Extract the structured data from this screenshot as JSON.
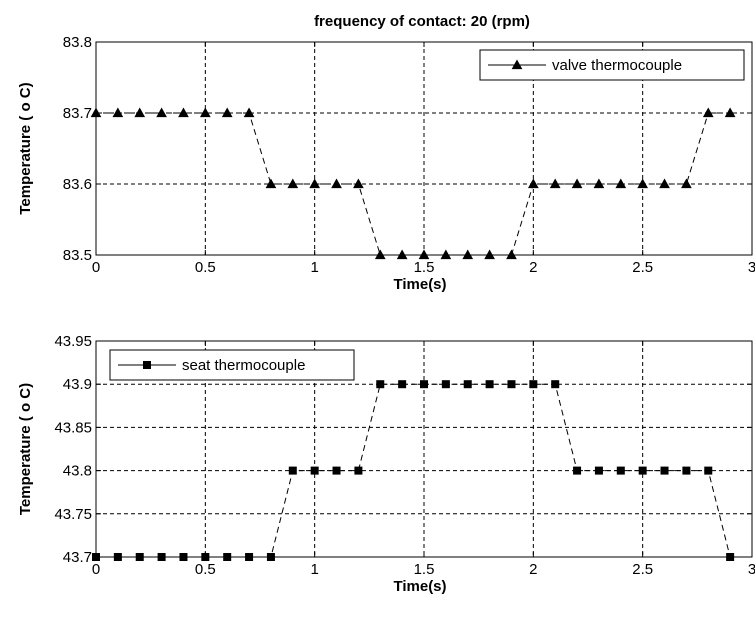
{
  "chart_data": [
    {
      "type": "line",
      "title": "frequency of contact: 20 (rpm)",
      "xlabel": "Time(s)",
      "ylabel": "Temperature (  o C)",
      "xlim": [
        0,
        3
      ],
      "ylim": [
        83.5,
        83.8
      ],
      "xticks": [
        0,
        0.5,
        1,
        1.5,
        2,
        2.5,
        3
      ],
      "xtick_labels": [
        "0",
        "0.5",
        "1",
        "1.5",
        "2",
        "2.5",
        "3"
      ],
      "yticks": [
        83.5,
        83.6,
        83.7,
        83.8
      ],
      "ytick_labels": [
        "83.5",
        "83.6",
        "83.7",
        "83.8"
      ],
      "grid": true,
      "legend_position": "top-right",
      "series": [
        {
          "name": "valve thermocouple",
          "marker": "triangle",
          "line_style": "dashed",
          "color": "#000000",
          "x": [
            0,
            0.1,
            0.2,
            0.3,
            0.4,
            0.5,
            0.6,
            0.7,
            0.8,
            0.9,
            1.0,
            1.1,
            1.2,
            1.3,
            1.4,
            1.5,
            1.6,
            1.7,
            1.8,
            1.9,
            2.0,
            2.1,
            2.2,
            2.3,
            2.4,
            2.5,
            2.6,
            2.7,
            2.8,
            2.9
          ],
          "y": [
            83.7,
            83.7,
            83.7,
            83.7,
            83.7,
            83.7,
            83.7,
            83.7,
            83.6,
            83.6,
            83.6,
            83.6,
            83.6,
            83.5,
            83.5,
            83.5,
            83.5,
            83.5,
            83.5,
            83.5,
            83.6,
            83.6,
            83.6,
            83.6,
            83.6,
            83.6,
            83.6,
            83.6,
            83.7,
            83.7
          ]
        }
      ]
    },
    {
      "type": "line",
      "title": "",
      "xlabel": "Time(s)",
      "ylabel": "Temperature (  o C)",
      "xlim": [
        0,
        3
      ],
      "ylim": [
        43.7,
        43.95
      ],
      "xticks": [
        0,
        0.5,
        1,
        1.5,
        2,
        2.5,
        3
      ],
      "xtick_labels": [
        "0",
        "0.5",
        "1",
        "1.5",
        "2",
        "2.5",
        "3"
      ],
      "yticks": [
        43.7,
        43.75,
        43.8,
        43.85,
        43.9,
        43.95
      ],
      "ytick_labels": [
        "43.7",
        "43.75",
        "43.8",
        "43.85",
        "43.9",
        "43.95"
      ],
      "grid": true,
      "legend_position": "top-left",
      "series": [
        {
          "name": "seat thermocouple",
          "marker": "square",
          "line_style": "dashed",
          "color": "#000000",
          "x": [
            0,
            0.1,
            0.2,
            0.3,
            0.4,
            0.5,
            0.6,
            0.7,
            0.8,
            0.9,
            1.0,
            1.1,
            1.2,
            1.3,
            1.4,
            1.5,
            1.6,
            1.7,
            1.8,
            1.9,
            2.0,
            2.1,
            2.2,
            2.3,
            2.4,
            2.5,
            2.6,
            2.7,
            2.8,
            2.9
          ],
          "y": [
            43.7,
            43.7,
            43.7,
            43.7,
            43.7,
            43.7,
            43.7,
            43.7,
            43.7,
            43.8,
            43.8,
            43.8,
            43.8,
            43.9,
            43.9,
            43.9,
            43.9,
            43.9,
            43.9,
            43.9,
            43.9,
            43.9,
            43.8,
            43.8,
            43.8,
            43.8,
            43.8,
            43.8,
            43.8,
            43.7
          ]
        }
      ]
    }
  ]
}
